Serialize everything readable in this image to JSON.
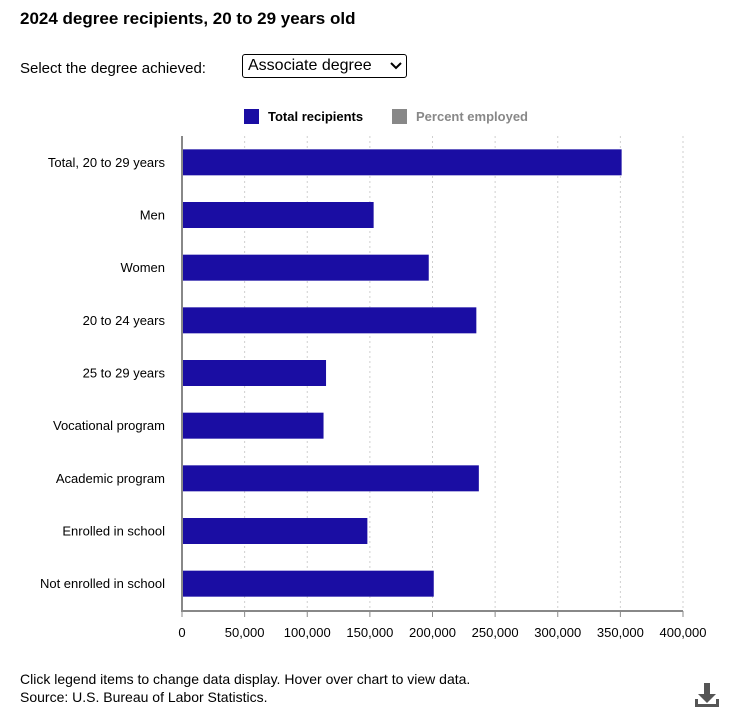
{
  "page": {
    "title": "2024 degree recipients, 20 to 29 years old",
    "selector_label": "Select the degree achieved:",
    "selected_degree": "Associate degree",
    "footer_line1": "Click legend items to change data display. Hover over chart to view data.",
    "footer_line2": "Source: U.S. Bureau of Labor Statistics.",
    "download_icon": "download-icon"
  },
  "legend": [
    {
      "label": "Total recipients",
      "color": "#1a0da3",
      "active": true
    },
    {
      "label": "Percent employed",
      "color": "#888888",
      "active": false
    }
  ],
  "chart_data": {
    "type": "bar",
    "orientation": "horizontal",
    "title": "2024 degree recipients, 20 to 29 years old",
    "categories": [
      "Total, 20 to 29 years",
      "Men",
      "Women",
      "20 to 24 years",
      "25 to 29 years",
      "Vocational program",
      "Academic program",
      "Enrolled in school",
      "Not enrolled in school"
    ],
    "series": [
      {
        "name": "Total recipients",
        "color": "#1a0da3",
        "values": [
          351000,
          153000,
          197000,
          235000,
          115000,
          113000,
          237000,
          148000,
          201000
        ]
      }
    ],
    "xlim": [
      0,
      400000
    ],
    "xticks": [
      0,
      50000,
      100000,
      150000,
      200000,
      250000,
      300000,
      350000,
      400000
    ],
    "xtick_labels": [
      "0",
      "50,000",
      "100,000",
      "150,000",
      "200,000",
      "250,000",
      "300,000",
      "350,000",
      "400,000"
    ],
    "grid": "vertical dotted",
    "xlabel": "",
    "ylabel": ""
  }
}
